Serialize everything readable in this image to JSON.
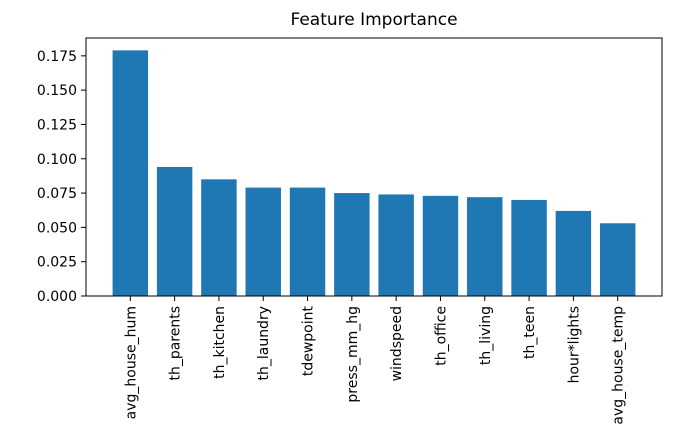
{
  "chart_data": {
    "type": "bar",
    "title": "Feature Importance",
    "xlabel": "",
    "ylabel": "",
    "categories": [
      "avg_house_hum",
      "th_parents",
      "th_kitchen",
      "th_laundry",
      "tdewpoint",
      "press_mm_hg",
      "windspeed",
      "th_office",
      "th_living",
      "th_teen",
      "hour*lights",
      "avg_house_temp"
    ],
    "values": [
      0.179,
      0.094,
      0.085,
      0.079,
      0.079,
      0.075,
      0.074,
      0.073,
      0.072,
      0.07,
      0.062,
      0.053
    ],
    "yticks": [
      "0.000",
      "0.025",
      "0.050",
      "0.075",
      "0.100",
      "0.125",
      "0.150",
      "0.175"
    ],
    "ylim": [
      0,
      0.188
    ],
    "grid": false,
    "bar_color": "#1f77b4"
  }
}
